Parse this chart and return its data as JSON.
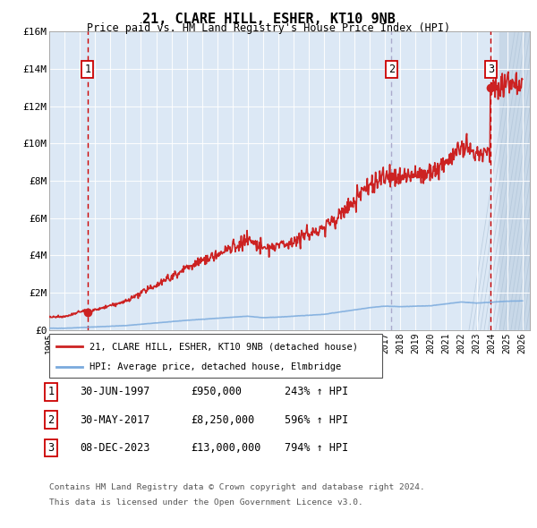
{
  "title": "21, CLARE HILL, ESHER, KT10 9NB",
  "subtitle": "Price paid vs. HM Land Registry's House Price Index (HPI)",
  "legend_line1": "21, CLARE HILL, ESHER, KT10 9NB (detached house)",
  "legend_line2": "HPI: Average price, detached house, Elmbridge",
  "footer1": "Contains HM Land Registry data © Crown copyright and database right 2024.",
  "footer2": "This data is licensed under the Open Government Licence v3.0.",
  "transactions": [
    {
      "num": 1,
      "date_num": 1997.497,
      "price": 950000,
      "label": "30-JUN-1997",
      "pct": "243%",
      "vline_style": "dashed",
      "vline_color": "#cc0000"
    },
    {
      "num": 2,
      "date_num": 2017.411,
      "price": 8250000,
      "label": "30-MAY-2017",
      "pct": "596%",
      "vline_style": "dashed",
      "vline_color": "#aaaacc"
    },
    {
      "num": 3,
      "date_num": 2023.934,
      "price": 13000000,
      "label": "08-DEC-2023",
      "pct": "794%",
      "vline_style": "dashed",
      "vline_color": "#cc0000"
    }
  ],
  "table_rows": [
    [
      "1",
      "30-JUN-1997",
      "£950,000",
      "243% ↑ HPI"
    ],
    [
      "2",
      "30-MAY-2017",
      "£8,250,000",
      "596% ↑ HPI"
    ],
    [
      "3",
      "08-DEC-2023",
      "£13,000,000",
      "794% ↑ HPI"
    ]
  ],
  "ylim": [
    0,
    16000000
  ],
  "yticks": [
    0,
    2000000,
    4000000,
    6000000,
    8000000,
    10000000,
    12000000,
    14000000,
    16000000
  ],
  "ytick_labels": [
    "£0",
    "£2M",
    "£4M",
    "£6M",
    "£8M",
    "£10M",
    "£12M",
    "£14M",
    "£16M"
  ],
  "xlim_start": 1995.0,
  "xlim_end": 2026.5,
  "xticks": [
    1995,
    1996,
    1997,
    1998,
    1999,
    2000,
    2001,
    2002,
    2003,
    2004,
    2005,
    2006,
    2007,
    2008,
    2009,
    2010,
    2011,
    2012,
    2013,
    2014,
    2015,
    2016,
    2017,
    2018,
    2019,
    2020,
    2021,
    2022,
    2023,
    2024,
    2025,
    2026
  ],
  "hpi_color": "#7aaadd",
  "price_color": "#cc2222",
  "bg_color": "#dce8f5",
  "hatch_color": "#c8d8e8",
  "grid_color": "#ffffff",
  "annotation_box_color": "#cc0000",
  "hatch_start": 2024.5
}
